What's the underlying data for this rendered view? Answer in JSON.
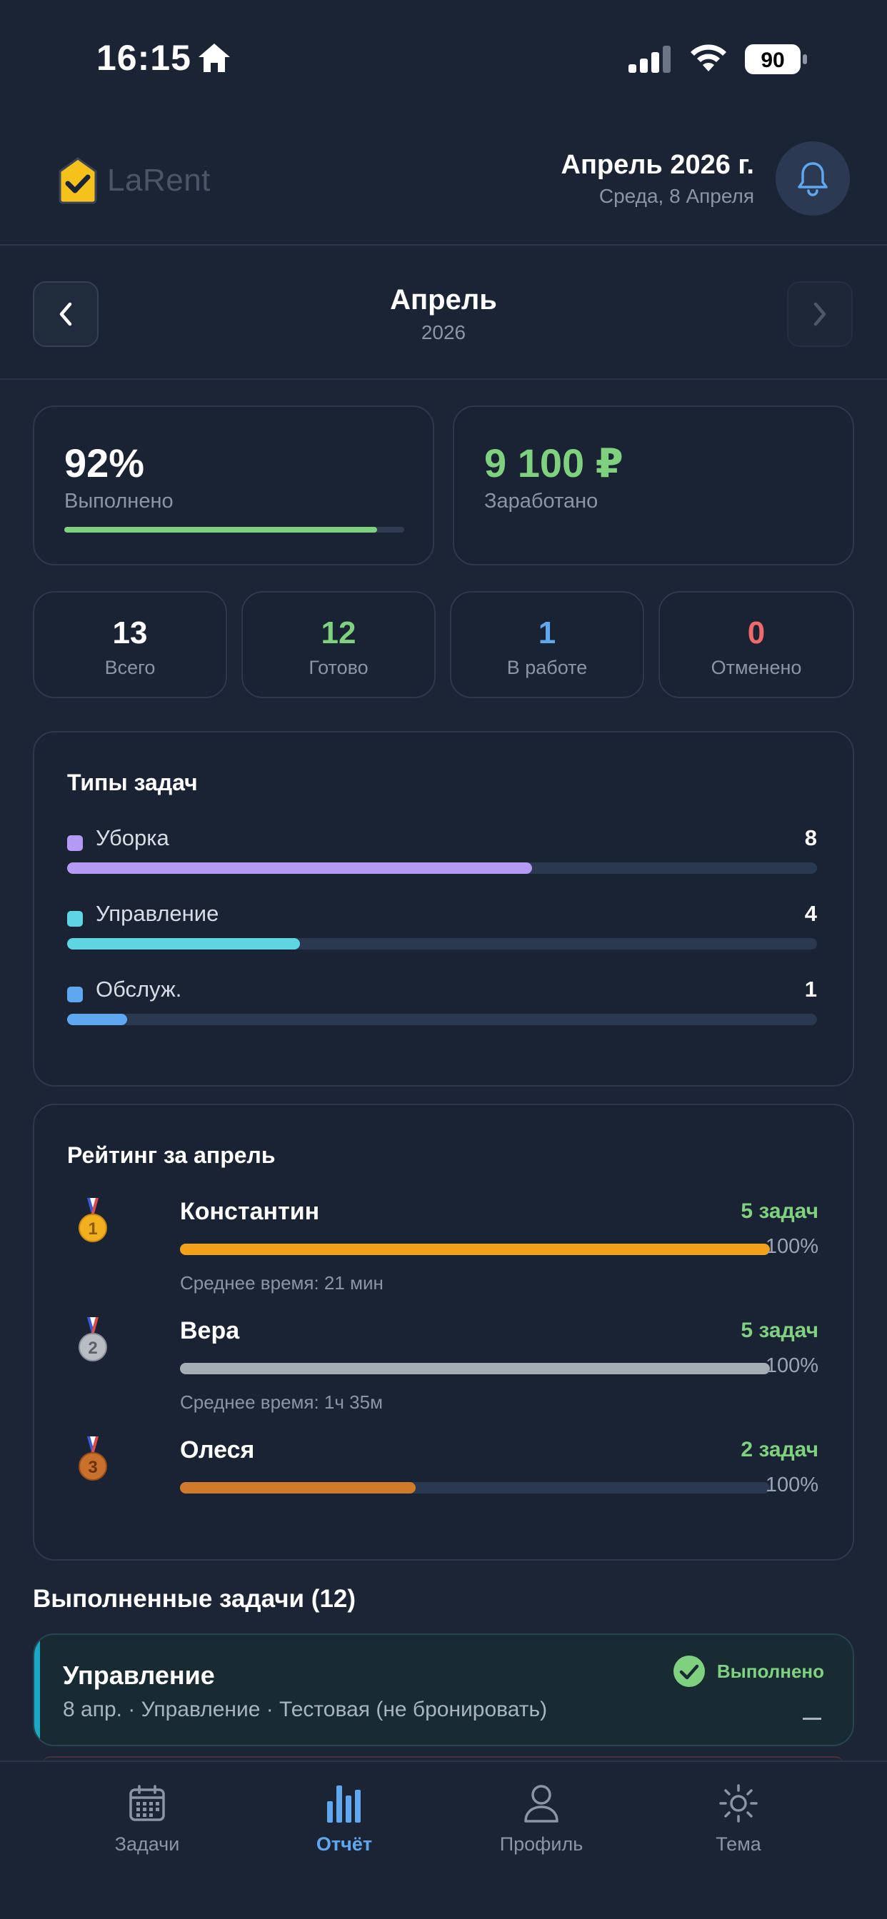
{
  "status_bar": {
    "time": "16:15",
    "battery": "90"
  },
  "header": {
    "logo_text": "LaRent",
    "date_title": "Апрель 2026 г.",
    "date_subtitle": "Среда, 8 Апреля"
  },
  "month_nav": {
    "month": "Апрель",
    "year": "2026"
  },
  "summary": {
    "completion": {
      "value": "92%",
      "label": "Выполнено",
      "progress": 0.92
    },
    "earned": {
      "value": "9 100 ₽",
      "label": "Заработано"
    }
  },
  "counts": [
    {
      "value": "13",
      "label": "Всего",
      "color": "#ffffff"
    },
    {
      "value": "12",
      "label": "Готово",
      "color": "#7fd17f"
    },
    {
      "value": "1",
      "label": "В работе",
      "color": "#5fa8f0"
    },
    {
      "value": "0",
      "label": "Отменено",
      "color": "#f06a6a"
    }
  ],
  "task_types": {
    "title": "Типы задач",
    "items": [
      {
        "name": "Уборка",
        "count": "8",
        "color": "#b49af5",
        "fraction": 0.62
      },
      {
        "name": "Управление",
        "count": "4",
        "color": "#5fd4e3",
        "fraction": 0.31
      },
      {
        "name": "Обслуж.",
        "count": "1",
        "color": "#5fa8f0",
        "fraction": 0.08
      }
    ]
  },
  "rating": {
    "title": "Рейтинг за апрель",
    "items": [
      {
        "rank": "1",
        "name": "Константин",
        "tasks": "5 задач",
        "percent": "100%",
        "avg": "Среднее время: 21 мин",
        "color": "#f2a11a",
        "fraction": 1.0
      },
      {
        "rank": "2",
        "name": "Вера",
        "tasks": "5 задач",
        "percent": "100%",
        "avg": "Среднее время: 1ч 35м",
        "color": "#a8acb3",
        "fraction": 1.0
      },
      {
        "rank": "3",
        "name": "Олеся",
        "tasks": "2 задач",
        "percent": "100%",
        "avg": "",
        "color": "#d07a2c",
        "fraction": 0.4
      }
    ]
  },
  "completed": {
    "title": "Выполненные задачи (12)",
    "tasks": [
      {
        "name": "Управление",
        "meta": "8 апр. · Управление · Тестовая (не бронировать)",
        "status": "Выполнено"
      }
    ]
  },
  "tabs": [
    {
      "label": "Задачи",
      "icon": "calendar-icon",
      "active": false
    },
    {
      "label": "Отчёт",
      "icon": "bar-chart-icon",
      "active": true
    },
    {
      "label": "Профиль",
      "icon": "person-icon",
      "active": false
    },
    {
      "label": "Тема",
      "icon": "sun-icon",
      "active": false
    }
  ]
}
